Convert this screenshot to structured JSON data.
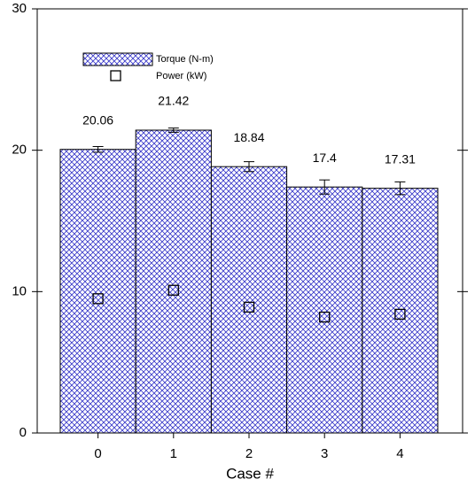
{
  "chart_data": {
    "type": "bar",
    "x_label": "Case #",
    "categories": [
      "0",
      "1",
      "2",
      "3",
      "4"
    ],
    "series": [
      {
        "name": "Torque (N-m)",
        "color": "#3535c8",
        "values": [
          20.06,
          21.42,
          18.84,
          17.4,
          17.31
        ],
        "errors": [
          0.2,
          0.15,
          0.35,
          0.5,
          0.45
        ]
      },
      {
        "name": "Power (kW)",
        "color": "#000000",
        "values": [
          9.5,
          10.1,
          8.9,
          8.2,
          8.4
        ]
      }
    ],
    "ylim": [
      0,
      30
    ],
    "yticks": [
      0,
      10,
      20,
      30
    ]
  }
}
